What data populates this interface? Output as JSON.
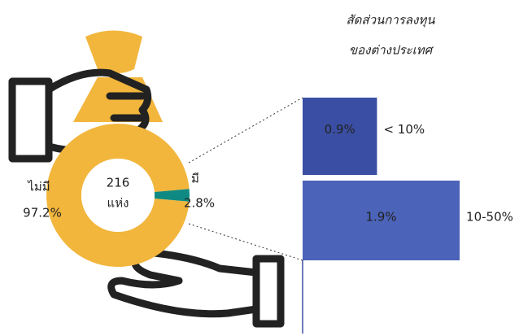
{
  "chart_data": [
    {
      "type": "pie",
      "categories": [
        "ไม่มี",
        "มี"
      ],
      "values": [
        97.2,
        2.8
      ],
      "value_labels": [
        "97.2%",
        "2.8%"
      ],
      "colors": [
        "#f2b63d",
        "#0e8a82"
      ],
      "center_labels": [
        "216",
        "แห่ง"
      ]
    },
    {
      "type": "bar",
      "title_lines": [
        "สัดส่วนการลงทุน",
        "ของต่างประเทศ"
      ],
      "categories": [
        "< 10%",
        "10-50%"
      ],
      "values": [
        0.9,
        1.9
      ],
      "value_labels": [
        "0.9%",
        "1.9%"
      ],
      "colors": [
        "#3a4fa3",
        "#4b63b8"
      ]
    }
  ]
}
